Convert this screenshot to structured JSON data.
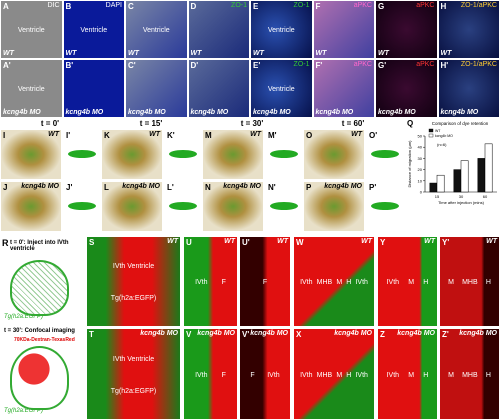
{
  "row_top": {
    "panels": [
      {
        "label": "A",
        "stain": "DIC",
        "notes": [
          "Ventricle"
        ],
        "genotype": "WT"
      },
      {
        "label": "B",
        "stain": "DAPI",
        "notes": [
          "Ventricle"
        ],
        "genotype": "WT"
      },
      {
        "label": "C",
        "notes": [
          "Ventricle"
        ],
        "genotype": "WT"
      },
      {
        "label": "D",
        "stain": "ZO-1",
        "genotype": "WT"
      },
      {
        "label": "E",
        "stain": "ZO-1",
        "notes": [
          "Ventricle"
        ],
        "genotype": "WT"
      },
      {
        "label": "F",
        "stain": "aPKC",
        "genotype": "WT"
      },
      {
        "label": "G",
        "stain": "aPKC",
        "genotype": "WT"
      },
      {
        "label": "H",
        "stain": "ZO-1/aPKC",
        "genotype": "WT"
      },
      {
        "label": "A'",
        "notes": [
          "Ventricle"
        ],
        "genotype": "kcng4b MO"
      },
      {
        "label": "B'",
        "genotype": "kcng4b MO"
      },
      {
        "label": "C'",
        "genotype": "kcng4b MO"
      },
      {
        "label": "D'",
        "genotype": "kcng4b MO"
      },
      {
        "label": "E'",
        "stain": "ZO-1",
        "notes": [
          "Ventricle"
        ],
        "genotype": "kcng4b MO"
      },
      {
        "label": "F'",
        "stain": "aPKC",
        "genotype": "kcng4b MO"
      },
      {
        "label": "G'",
        "stain": "aPKC",
        "genotype": "kcng4b MO"
      },
      {
        "label": "H'",
        "stain": "ZO-1/aPKC",
        "genotype": "kcng4b MO"
      }
    ]
  },
  "time_row": {
    "times": [
      "t = 0'",
      "t = 15'",
      "t = 30'",
      "t = 60'"
    ],
    "panels": [
      {
        "label": "I",
        "genotype": "WT"
      },
      {
        "label": "I'"
      },
      {
        "label": "J",
        "genotype": "kcng4b MO"
      },
      {
        "label": "J'"
      },
      {
        "label": "K",
        "genotype": "WT"
      },
      {
        "label": "K'"
      },
      {
        "label": "L",
        "genotype": "kcng4b MO"
      },
      {
        "label": "L'"
      },
      {
        "label": "M",
        "genotype": "WT"
      },
      {
        "label": "M'"
      },
      {
        "label": "N",
        "genotype": "kcng4b MO"
      },
      {
        "label": "N'"
      },
      {
        "label": "O",
        "genotype": "WT"
      },
      {
        "label": "O'"
      },
      {
        "label": "P",
        "genotype": "kcng4b MO"
      },
      {
        "label": "P'"
      }
    ]
  },
  "chart": {
    "type": "bar",
    "label": "Q",
    "title": "Comparison of dye retention",
    "xlabel": "Time after injection (mins)",
    "ylabel": "Distance of migration (µm)",
    "annotation": "(n=6)",
    "categories": [
      "15",
      "30",
      "60"
    ],
    "series": [
      {
        "name": "WT",
        "color": "#111111",
        "values": [
          8,
          20,
          30
        ]
      },
      {
        "name": "kcng4b MO",
        "color": "#ffffff",
        "values": [
          15,
          28,
          43
        ]
      }
    ],
    "ylim": [
      0,
      50
    ],
    "yticks": [
      0,
      10,
      20,
      30,
      40,
      50
    ]
  },
  "bottom": {
    "schematic": {
      "label": "R",
      "steps": [
        "t = 0': Inject into IVth ventricle",
        "t = 30': Confocal imaging"
      ],
      "dye": "70KDa-Dextran-TexasRed",
      "lines": [
        "Tg(h2a:EGFP)",
        "Tg(h2a:EGFP)"
      ]
    },
    "panels": [
      {
        "label": "S",
        "notes": [
          "IVth Ventricle",
          "Tg(h2a:EGFP)"
        ],
        "genotype": "WT"
      },
      {
        "label": "T",
        "notes": [
          "IVth Ventricle",
          "Tg(h2a:EGFP)"
        ],
        "genotype": "kcng4b MO"
      },
      {
        "label": "U",
        "notes": [
          "IVth",
          "F"
        ],
        "genotype": "WT"
      },
      {
        "label": "U'",
        "notes": [
          "F"
        ],
        "genotype": "WT"
      },
      {
        "label": "V",
        "notes": [
          "IVth",
          "F"
        ],
        "genotype": "kcng4b MO"
      },
      {
        "label": "V'",
        "notes": [
          "F",
          "IVth"
        ],
        "genotype": "kcng4b MO"
      },
      {
        "label": "W",
        "notes": [
          "IVth",
          "MHB",
          "M",
          "H",
          "IVth"
        ],
        "genotype": "WT"
      },
      {
        "label": "X",
        "notes": [
          "IVth",
          "MHB",
          "M",
          "H",
          "IVth"
        ],
        "genotype": "kcng4b MO"
      },
      {
        "label": "Y",
        "notes": [
          "IVth",
          "M",
          "H"
        ],
        "genotype": "WT"
      },
      {
        "label": "Y'",
        "notes": [
          "M",
          "MHB",
          "H"
        ],
        "genotype": "WT"
      },
      {
        "label": "Z",
        "notes": [
          "IVth",
          "M",
          "H"
        ],
        "genotype": "kcng4b MO"
      },
      {
        "label": "Z'",
        "notes": [
          "M",
          "MHB",
          "H"
        ],
        "genotype": "kcng4b MO"
      }
    ]
  }
}
